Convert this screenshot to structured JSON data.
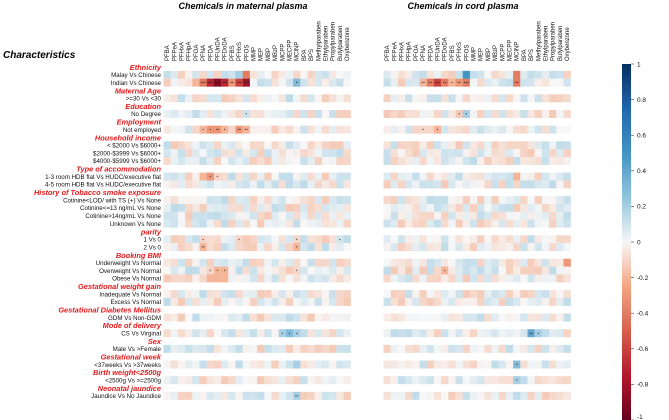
{
  "chart_data": {
    "type": "heatmap",
    "titles": {
      "characteristics": "Characteristics",
      "maternal": "Chemicals in maternal plasma",
      "cord": "Chemicals in cord plasma"
    },
    "columns": [
      "PFBA",
      "PFPeA",
      "PFHxA",
      "PFHpA",
      "PFOA",
      "PFNA",
      "PFDA",
      "PFUnDA",
      "PFDoDA",
      "PFBS",
      "PFHxS",
      "PFOS",
      "MMP",
      "MEP",
      "MBP",
      "MBzP",
      "MCPP",
      "MECPP",
      "MCINP",
      "BPA",
      "BPS",
      "Methylparaben",
      "Ethylparaben",
      "Propylparaben",
      "Butylparaben",
      "Oxybenzone"
    ],
    "rows": [
      {
        "type": "group",
        "label": "Ethnicity"
      },
      {
        "type": "row",
        "label": "Malay Vs Chinese",
        "m": "0 0 0 0 0 0 0 0 0 1 2 -4 0 0 0 0 0 0 -1 0 0 0 0 0 0 0",
        "c": "0 0 0 0 1 0 0 0 0 0 0 5 0 1 0 0 0 0 -4 0 0 0 0 0 0 0"
      },
      {
        "type": "row",
        "label": "Indian Vs Chinese",
        "m": "0 0 0 0 -2 -4 -7 -9 -7 -3 -6 -8 0 0 1 0 0 0 3 0 0 0 0 0 0 0",
        "c": "0 0 0 0 0 -2 -4 -6 -4 -2 -3 -4 0 0 0 0 0 0 -4 0 0 0 0 0 0 0",
        "ms": "0 0 0 0 0 3 3 3 3 2 3 3 0 0 0 0 0 0 1 0 0 0 0 0 0 0",
        "cs": "0 0 0 0 0 2 2 3 2 1 2 3 0 0 0 0 0 0 2 0 0 0 0 0 0 0"
      },
      {
        "type": "group",
        "label": "Maternal Age"
      },
      {
        "type": "row",
        "label": ">=30 Vs <30",
        "m": "0 0 0 0 0 0 0 0 0 0 0 0 0 0 0 0 0 0 0 0 0 0 0 0 0 0",
        "c": "0 0 0 0 0 0 0 0 0 0 0 0 0 0 0 0 0 0 0 0 0 0 0 0 0 0"
      },
      {
        "type": "group",
        "label": "Education"
      },
      {
        "type": "row",
        "label": "No Degree",
        "m": "0 0 0 0 0 0 0 0 0 0 -1 1 0 0 0 0 0 0 0 0 0 0 0 0 0 0",
        "c": "0 0 0 0 0 0 0 0 0 0 0 2 0 0 0 0 0 0 0 0 0 0 0 0 0 0",
        "ms": "0 0 0 0 0 0 0 0 0 0 0 1 0 0 0 0 0 0 0 0 0 0 0 0 0 0",
        "cs": "0 0 0 0 0 0 0 0 0 0 1 1 0 0 0 0 0 0 0 0 0 0 0 0 0 0"
      },
      {
        "type": "group",
        "label": "Employment"
      },
      {
        "type": "row",
        "label": "Not employed",
        "m": "0 0 0 0 -1 -2 -3 -3 -2 -1 -3 -2 0 0 0 0 0 0 0 0 0 0 0 0 0 0",
        "c": "0 0 0 0 0 -1 0 -2 0 0 0 -1 0 0 0 0 0 0 0 0 0 0 0 0 0 0",
        "ms": "0 0 0 0 0 1 1 2 1 0 2 2 0 0 0 0 0 0 0 0 0 0 0 0 0 0",
        "cs": "0 0 0 0 0 1 0 1 0 0 0 0 0 0 0 0 0 0 0 0 0 0 0 0 0 0"
      },
      {
        "type": "group",
        "label": "Household income"
      },
      {
        "type": "row",
        "label": "< $2000 Vs $6000+",
        "m": "0 0 -1 0 0 0 0 0 0 0 0 0 0 0 0 0 0 0 0 0 0 0 0 0 0 0",
        "c": "0 0 0 0 0 0 0 0 0 0 0 0 0 0 0 0 0 0 -1 0 0 0 0 0 0 0"
      },
      {
        "type": "row",
        "label": "$2000-$3999 Vs $6000+",
        "m": "0 0 0 -1 0 0 0 0 0 0 0 0 0 0 0 0 0 0 0 0 0 0 0 0 0 0",
        "c": "0 0 0 0 0 0 0 0 0 0 0 0 0 0 0 0 0 0 0 0 0 0 0 0 0 0"
      },
      {
        "type": "row",
        "label": "$4000-$5999 Vs $6000+",
        "m": "0 0 0 0 0 0 0 0 0 0 0 0 0 0 0 0 0 0 0 0 0 0 0 0 0 0",
        "c": "0 0 0 0 0 0 0 0 0 0 0 0 0 0 0 0 0 0 0 0 0 0 0 0 0 0"
      },
      {
        "type": "group",
        "label": "Type of accommodation"
      },
      {
        "type": "row",
        "label": "1-3 room HDB flat Vs HUDC/executive flat",
        "m": "0 0 0 0 0 -2 -3 -1 0 0 0 0 0 0 0 0 0 0 0 0 0 0 0 0 0 0",
        "c": "0 0 0 0 0 0 0 0 0 0 0 0 0 0 0 0 0 0 -2 0 0 0 0 0 0 0",
        "ms": "0 0 0 0 0 0 1 1 0 0 0 0 0 0 0 0 0 0 0 0 0 0 0 0 0 0"
      },
      {
        "type": "row",
        "label": "4-5 room HDB flat Vs HUDC/executive flat",
        "m": "0 0 0 0 0 0 0 0 0 0 0 0 0 0 0 0 0 0 0 0 0 0 0 0 0 0",
        "c": "0 0 0 0 0 0 0 0 0 0 0 0 0 0 0 0 0 0 -1 0 0 0 0 0 0 0"
      },
      {
        "type": "group",
        "label": "History of Tobacco smoke exposure"
      },
      {
        "type": "row",
        "label": "Cotinine<LOD/ with TS (+) Vs None",
        "m": "0 0 0 0 0 0 0 0 0 0 0 0 0 0 0 0 0 0 0 0 0 0 0 0 0 0",
        "c": "0 0 0 0 0 0 0 0 0 0 0 0 0 0 0 0 0 0 0 0 0 0 0 0 0 0"
      },
      {
        "type": "row",
        "label": "Cotinine<=13 ng/mL Vs None",
        "m": "0 0 0 0 0 0 0 0 0 0 0 0 0 0 0 0 0 0 0 0 0 0 0 0 0 0",
        "c": "0 0 0 0 0 0 0 0 0 0 0 0 0 0 0 0 0 0 0 0 0 0 0 0 0 0"
      },
      {
        "type": "row",
        "label": "Cotinine>14ng/mL Vs None",
        "m": "1 1 0 0 0 0 0 0 0 0 0 0 0 0 0 0 0 0 0 0 0 0 0 0 0 0",
        "c": "0 0 0 0 0 0 0 0 0 0 0 0 0 0 0 0 0 0 0 0 0 0 0 0 0 0"
      },
      {
        "type": "row",
        "label": "Unknown Vs None",
        "m": "0 0 0 0 0 0 0 0 0 0 0 0 0 0 0 0 0 0 0 0 0 0 0 0 0 0",
        "c": "0 0 0 0 0 0 0 0 0 0 0 0 0 0 0 0 0 0 0 0 0 0 0 0 0 0"
      },
      {
        "type": "group",
        "label": "parity"
      },
      {
        "type": "row",
        "label": "1 Vs 0",
        "m": "0 0 0 0 0 -1 0 0 0 0 -1 0 0 0 0 0 0 0 -1 0 0 0 0 0 0 0",
        "c": "0 0 0 0 0 0 0 0 0 0 0 0 0 0 0 0 0 0 0 0 0 0 0 0 0 0",
        "ms": "0 0 0 0 0 1 0 0 0 0 1 0 0 0 0 0 0 0 1 0 0 0 0 0 1 0"
      },
      {
        "type": "row",
        "label": "2 Vs 0",
        "m": "0 0 0 0 0 -2 0 0 0 0 -1 0 0 0 0 0 0 0 -2 0 0 0 0 0 0 0",
        "c": "0 0 0 0 0 0 0 0 0 0 0 0 0 0 0 0 0 0 -1 0 0 0 0 0 0 0",
        "ms": "0 0 0 0 0 2 0 0 0 0 0 0 0 0 0 0 0 0 1 0 0 0 0 0 0 0"
      },
      {
        "type": "group",
        "label": "Booking BMI"
      },
      {
        "type": "row",
        "label": "Underweight Vs Normal",
        "m": "0 0 0 0 0 0 0 0 0 0 0 0 0 0 0 0 0 0 0 0 0 0 0 0 0 0",
        "c": "0 0 0 0 0 0 0 0 0 0 0 0 0 0 0 0 0 0 0 0 0 0 0 0 0 -3"
      },
      {
        "type": "row",
        "label": "Overweight Vs Normal",
        "m": "0 0 0 0 0 0 -1 -2 -2 0 0 0 0 0 0 0 0 0 -1 0 0 0 0 0 0 0",
        "c": "0 0 0 0 0 0 0 0 -2 0 0 0 0 0 0 0 0 0 0 0 0 0 0 0 0 0",
        "ms": "0 0 0 0 0 0 1 1 1 0 0 0 0 0 0 0 0 0 1 0 0 0 0 0 0 0",
        "cs": "0 0 0 0 0 0 0 0 1 0 0 0 0 0 0 0 0 0 0 0 0 0 0 0 0 0"
      },
      {
        "type": "row",
        "label": "Obese Vs Normal",
        "m": "0 0 0 0 0 -1 -2 -2 -2 0 0 0 0 0 0 0 0 0 0 0 0 0 0 0 0 0",
        "c": "0 0 0 0 0 0 0 0 0 0 0 0 0 0 0 0 0 0 0 0 0 0 0 0 0 0"
      },
      {
        "type": "group",
        "label": "Gestational weight gain"
      },
      {
        "type": "row",
        "label": "Inadequate Vs Normal",
        "m": "0 0 0 0 0 0 0 0 0 0 0 0 0 0 0 0 0 0 0 0 0 0 0 0 0 0",
        "c": "0 0 0 0 0 0 0 0 0 0 0 0 0 0 0 0 0 0 0 0 0 0 0 0 0 0"
      },
      {
        "type": "row",
        "label": "Excess Vs Normal",
        "m": "0 0 0 0 0 0 0 0 0 0 0 0 0 0 0 0 0 0 0 0 0 0 0 0 0 0",
        "c": "0 0 0 0 0 0 0 0 0 0 0 0 0 0 0 0 0 0 0 0 0 0 0 0 0 0"
      },
      {
        "type": "group",
        "label": "Gestational Diabetes Mellitus"
      },
      {
        "type": "row",
        "label": "GDM Vs Non-GDM",
        "m": "0 0 0 0 0 0 0 0 0 0 0 0 0 0 0 0 0 0 0 0 0 0 0 0 0 0",
        "c": "0 0 0 0 0 0 0 0 0 0 0 0 0 0 0 0 0 0 0 0 0 0 0 0 0 0"
      },
      {
        "type": "group",
        "label": "Mode of delivery"
      },
      {
        "type": "row",
        "label": "CS Vs Virginal",
        "m": "0 0 0 0 0 0 0 0 0 0 0 0 0 0 0 0 2 3 2 0 0 0 0 0 0 0",
        "c": "0 0 0 0 0 0 0 0 0 0 0 0 0 0 0 0 0 0 0 0 4 2 0 0 0 0",
        "ms": "0 0 0 0 0 0 0 0 0 0 0 0 0 0 0 0 1 1 1 0 0 0 0 0 0 0",
        "cs": "0 0 0 0 0 0 0 0 0 0 0 0 0 0 0 0 0 0 0 0 2 1 0 0 0 0"
      },
      {
        "type": "group",
        "label": "Sex"
      },
      {
        "type": "row",
        "label": "Male Vs >Female",
        "m": "0 0 0 0 0 0 0 0 0 0 0 0 0 0 0 0 0 0 0 0 0 0 0 0 0 0",
        "c": "0 0 0 0 0 0 0 0 0 0 0 0 0 0 0 0 0 0 0 0 0 0 0 0 0 0"
      },
      {
        "type": "group",
        "label": "Gestational week"
      },
      {
        "type": "row",
        "label": "<37weeks Vs >37weeks",
        "m": "0 0 0 0 0 0 0 0 0 0 0 0 0 0 0 0 0 0 2 0 0 0 0 0 0 0",
        "c": "0 0 0 0 0 0 0 0 0 0 0 0 0 0 0 0 0 0 3 0 0 0 0 0 0 0",
        "cs": "0 0 0 0 0 0 0 0 0 0 0 0 0 0 0 0 0 0 1 0 0 0 0 0 0 0"
      },
      {
        "type": "group",
        "label": "Birth weight<2500g"
      },
      {
        "type": "row",
        "label": "<2500g Vs >=2500g",
        "m": "0 0 0 0 0 0 0 0 0 0 0 0 0 0 0 0 0 0 0 0 0 0 0 0 0 0",
        "c": "0 0 0 0 0 0 0 0 0 0 0 0 0 0 0 0 0 0 2 0 0 0 0 0 0 0",
        "cs": "0 0 0 0 0 0 0 0 0 0 0 0 0 0 0 0 0 0 1 0 0 0 0 0 0 0"
      },
      {
        "type": "group",
        "label": "Neonatal jaundice"
      },
      {
        "type": "row",
        "label": "Jaundice Vs No Jaundice",
        "m": "0 0 0 0 0 0 0 0 0 0 0 0 0 0 0 0 0 0 2 0 0 0 0 0 0 0",
        "c": "0 0 0 0 0 0 0 0 0 0 0 0 0 0 0 0 0 0 0 0 0 0 0 0 0 0",
        "ms": "0 0 0 0 0 0 0 0 0 0 0 0 0 0 0 0 0 0 2 0 0 0 0 0 0 0"
      }
    ],
    "value_scale": "row strings hold estimated coefficients x10 (range -10..10); ms/cs = significance stars (count)",
    "colorbar": {
      "min": -1,
      "max": 1,
      "ticks": [
        1,
        0.8,
        0.6,
        0.4,
        0.2,
        0,
        -0.2,
        -0.4,
        -0.6,
        -0.8,
        -1
      ]
    },
    "colors": {
      "negative": "#67001f",
      "zero": "#f7f7f7",
      "positive": "#053061",
      "group_label": "#e31a1c"
    }
  }
}
